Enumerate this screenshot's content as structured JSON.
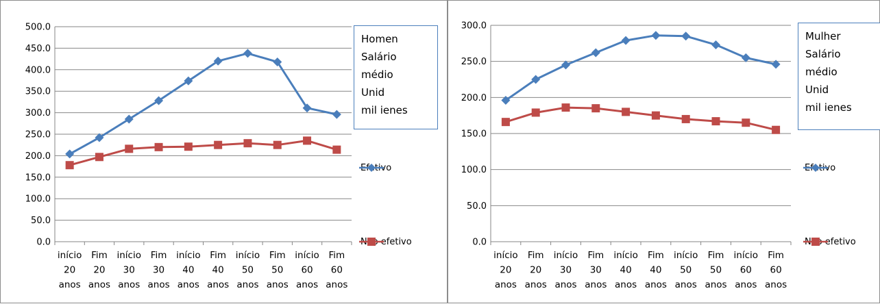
{
  "chart_data": [
    {
      "type": "line",
      "categories": [
        [
          "início",
          "20",
          "anos"
        ],
        [
          "Fim",
          "20",
          "anos"
        ],
        [
          "início",
          "30",
          "anos"
        ],
        [
          "Fim",
          "30",
          "anos"
        ],
        [
          "início",
          "40",
          "anos"
        ],
        [
          "Fim",
          "40",
          "anos"
        ],
        [
          "início",
          "50",
          "anos"
        ],
        [
          "Fim",
          "50",
          "anos"
        ],
        [
          "início",
          "60",
          "anos"
        ],
        [
          "Fim",
          "60",
          "anos"
        ]
      ],
      "ylim": [
        0,
        500
      ],
      "ytick_step": 50,
      "yticks": [
        "0.0",
        "50.0",
        "100.0",
        "150.0",
        "200.0",
        "250.0",
        "300.0",
        "350.0",
        "400.0",
        "450.0",
        "500.0"
      ],
      "grid": true,
      "legend_position": "right",
      "annotation": [
        "Homen",
        "Salário",
        "médio",
        "Unid",
        "mil ienes"
      ],
      "series": [
        {
          "name": "Efetivo",
          "color": "#4a7ebb",
          "marker": "diamond",
          "values": [
            204,
            242,
            285,
            328,
            374,
            420,
            438,
            418,
            311,
            296
          ]
        },
        {
          "name": "Não efetivo",
          "color": "#be4b48",
          "marker": "square",
          "values": [
            178,
            197,
            216,
            220,
            221,
            225,
            229,
            225,
            235,
            214
          ]
        }
      ]
    },
    {
      "type": "line",
      "categories": [
        [
          "início",
          "20",
          "anos"
        ],
        [
          "Fim",
          "20",
          "anos"
        ],
        [
          "início",
          "30",
          "anos"
        ],
        [
          "Fim",
          "30",
          "anos"
        ],
        [
          "início",
          "40",
          "anos"
        ],
        [
          "Fim",
          "40",
          "anos"
        ],
        [
          "início",
          "50",
          "anos"
        ],
        [
          "Fim",
          "50",
          "anos"
        ],
        [
          "início",
          "60",
          "anos"
        ],
        [
          "Fim",
          "60",
          "anos"
        ]
      ],
      "ylim": [
        0,
        300
      ],
      "ytick_step": 50,
      "yticks": [
        "0.0",
        "50.0",
        "100.0",
        "150.0",
        "200.0",
        "250.0",
        "300.0"
      ],
      "grid": true,
      "legend_position": "right",
      "annotation": [
        "Mulher",
        "Salário",
        "médio",
        "Unid",
        "mil ienes"
      ],
      "series": [
        {
          "name": "Efetivo",
          "color": "#4a7ebb",
          "marker": "diamond",
          "values": [
            196,
            225,
            245,
            262,
            279,
            286,
            285,
            273,
            255,
            246
          ]
        },
        {
          "name": "Não efetivo",
          "color": "#be4b48",
          "marker": "square",
          "values": [
            166,
            179,
            186,
            185,
            180,
            175,
            170,
            167,
            165,
            155
          ]
        }
      ]
    }
  ]
}
